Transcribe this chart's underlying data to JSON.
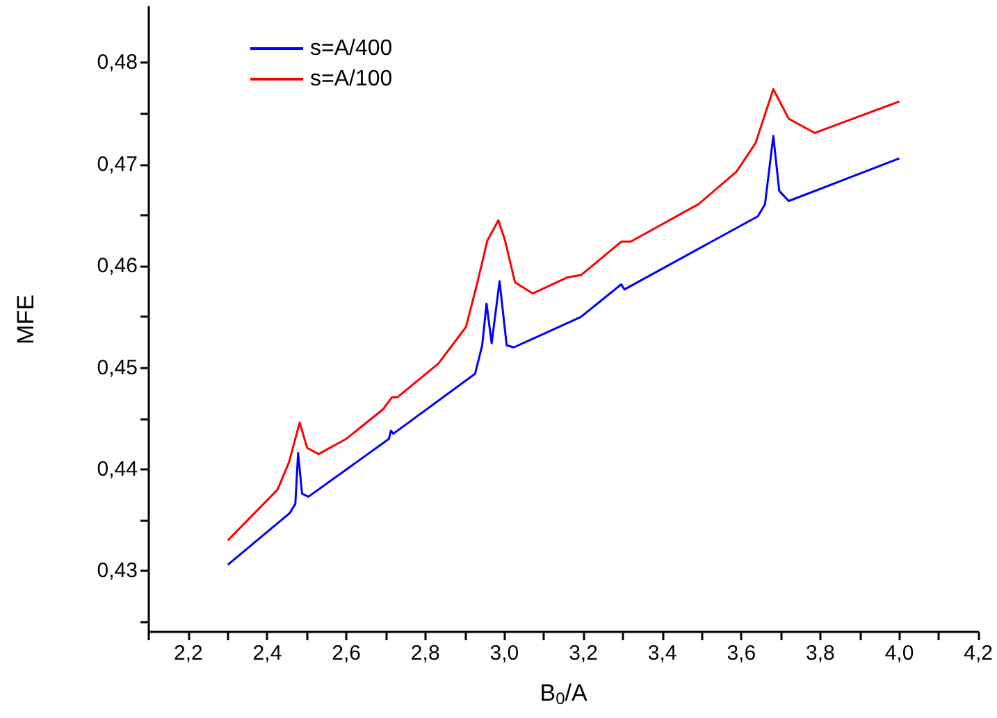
{
  "chart_data": {
    "type": "line",
    "xlabel": "B$_{0}$/A",
    "ylabel": "MFE",
    "xlim": [
      2.1,
      4.2
    ],
    "xticks": [
      {
        "value": 2.1,
        "label": null
      },
      {
        "value": 2.2,
        "label": "2,2"
      },
      {
        "value": 2.3,
        "label": null
      },
      {
        "value": 2.4,
        "label": "2,4"
      },
      {
        "value": 2.5,
        "label": null
      },
      {
        "value": 2.6,
        "label": "2,6"
      },
      {
        "value": 2.7,
        "label": null
      },
      {
        "value": 2.8,
        "label": "2,8"
      },
      {
        "value": 2.9,
        "label": null
      },
      {
        "value": 3.0,
        "label": "3,0"
      },
      {
        "value": 3.1,
        "label": null
      },
      {
        "value": 3.2,
        "label": "3,2"
      },
      {
        "value": 3.3,
        "label": null
      },
      {
        "value": 3.4,
        "label": "3,4"
      },
      {
        "value": 3.5,
        "label": null
      },
      {
        "value": 3.6,
        "label": "3,6"
      },
      {
        "value": 3.7,
        "label": null
      },
      {
        "value": 3.8,
        "label": "3,8"
      },
      {
        "value": 3.9,
        "label": null
      },
      {
        "value": 4.0,
        "label": "4,0"
      },
      {
        "value": 4.1,
        "label": null
      },
      {
        "value": 4.2,
        "label": "4,2"
      }
    ],
    "ylim": [
      0.424,
      0.4855
    ],
    "yticks": [
      {
        "value": 0.425,
        "label": null
      },
      {
        "value": 0.43,
        "label": "0,43"
      },
      {
        "value": 0.435,
        "label": null
      },
      {
        "value": 0.44,
        "label": "0,44"
      },
      {
        "value": 0.445,
        "label": null
      },
      {
        "value": 0.45,
        "label": "0,45"
      },
      {
        "value": 0.455,
        "label": null
      },
      {
        "value": 0.46,
        "label": "0,46"
      },
      {
        "value": 0.465,
        "label": null
      },
      {
        "value": 0.47,
        "label": "0,47"
      },
      {
        "value": 0.475,
        "label": null
      },
      {
        "value": 0.48,
        "label": "0,48"
      }
    ],
    "grid": false,
    "legend": "top left",
    "marker": "none",
    "line_style": "solid",
    "series": [
      {
        "name": "s=A/400",
        "color": "#0000ff",
        "x": [
          2.3,
          2.457,
          2.471,
          2.478,
          2.488,
          2.504,
          2.708,
          2.713,
          2.719,
          2.926,
          2.944,
          2.955,
          2.968,
          2.988,
          3.006,
          3.024,
          3.194,
          3.296,
          3.304,
          3.642,
          3.66,
          3.681,
          3.696,
          3.72,
          4.0
        ],
        "values": [
          0.4306,
          0.4357,
          0.4366,
          0.4416,
          0.4376,
          0.4373,
          0.443,
          0.4438,
          0.4435,
          0.4494,
          0.4522,
          0.4563,
          0.4524,
          0.4585,
          0.4522,
          0.452,
          0.455,
          0.4582,
          0.4577,
          0.4649,
          0.4661,
          0.4728,
          0.4674,
          0.4664,
          0.4706
        ]
      },
      {
        "name": "s=A/100",
        "color": "#ff0000",
        "x": [
          2.3,
          2.426,
          2.455,
          2.482,
          2.501,
          2.53,
          2.6,
          2.693,
          2.716,
          2.73,
          2.833,
          2.903,
          2.932,
          2.957,
          2.985,
          3.002,
          3.027,
          3.072,
          3.16,
          3.194,
          3.296,
          3.32,
          3.492,
          3.588,
          3.636,
          3.681,
          3.72,
          3.786,
          4.0
        ],
        "values": [
          0.433,
          0.438,
          0.4407,
          0.4446,
          0.4421,
          0.4415,
          0.443,
          0.4459,
          0.4471,
          0.4471,
          0.4504,
          0.454,
          0.4584,
          0.4625,
          0.4645,
          0.4625,
          0.4584,
          0.4573,
          0.4589,
          0.4591,
          0.4624,
          0.4624,
          0.4661,
          0.4693,
          0.4721,
          0.4774,
          0.4745,
          0.4731,
          0.4762
        ]
      }
    ]
  }
}
